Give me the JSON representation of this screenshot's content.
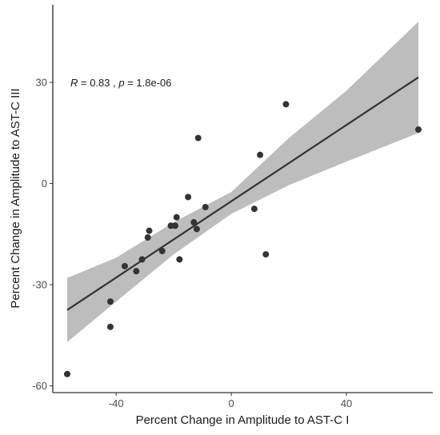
{
  "chart_data": {
    "type": "scatter",
    "xlabel": "Percent Change in Amplitude to AST-C I",
    "ylabel": "Percent Change in Amplitude to AST-C III",
    "xlim": [
      -62,
      70
    ],
    "ylim": [
      -62,
      53
    ],
    "xticks": [
      -40,
      0,
      40
    ],
    "yticks": [
      -60,
      -30,
      0,
      30
    ],
    "grid": false,
    "annotation": {
      "r_part": "R",
      "r_value": " = 0.83 , ",
      "p_part": "p",
      "p_value": " = 1.8e-06"
    },
    "points": [
      {
        "x": -57,
        "y": -56.5
      },
      {
        "x": -42,
        "y": -42.5
      },
      {
        "x": -42,
        "y": -35
      },
      {
        "x": -37,
        "y": -24.5
      },
      {
        "x": -33,
        "y": -26
      },
      {
        "x": -31,
        "y": -22.5
      },
      {
        "x": -29,
        "y": -16
      },
      {
        "x": -28.5,
        "y": -14
      },
      {
        "x": -24,
        "y": -20
      },
      {
        "x": -21,
        "y": -12.5
      },
      {
        "x": -19.5,
        "y": -12.5
      },
      {
        "x": -19,
        "y": -10
      },
      {
        "x": -18,
        "y": -22.5
      },
      {
        "x": -15,
        "y": -4
      },
      {
        "x": -13,
        "y": -11.5
      },
      {
        "x": -12,
        "y": -13.5
      },
      {
        "x": -11.5,
        "y": 13.5
      },
      {
        "x": -9,
        "y": -7
      },
      {
        "x": 8,
        "y": -7.5
      },
      {
        "x": 10,
        "y": 8.5
      },
      {
        "x": 12,
        "y": -21
      },
      {
        "x": 19,
        "y": 23.5
      },
      {
        "x": 65,
        "y": 16
      }
    ],
    "fit_line": {
      "x": [
        -57,
        65
      ],
      "y": [
        -37.5,
        31.5
      ]
    },
    "confidence_band": {
      "x": [
        -57,
        -40,
        -20,
        0,
        20,
        40,
        65
      ],
      "upper": [
        -28,
        -22,
        -11.5,
        -2.5,
        13.5,
        27.5,
        48
      ],
      "lower": [
        -47,
        -35,
        -21,
        -9,
        -0.5,
        6.5,
        15
      ]
    },
    "colors": {
      "point": "#333333",
      "line": "#333333",
      "band": "#bdbdbd",
      "axis": "#000000"
    }
  }
}
